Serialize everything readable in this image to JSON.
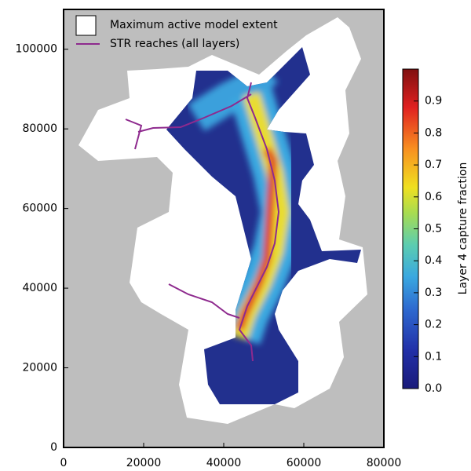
{
  "chart_data": {
    "type": "map",
    "legend": [
      {
        "name": "Maximum active model extent",
        "color": "#ffffff"
      },
      {
        "name": "STR reaches (all layers)",
        "color": "#8e2a8e"
      }
    ],
    "background": "#bebebe",
    "xlim": [
      0,
      80000
    ],
    "xticks": [
      0,
      20000,
      40000,
      60000,
      80000
    ],
    "ylim": [
      0,
      110000
    ],
    "yticks": [
      0,
      20000,
      40000,
      60000,
      80000,
      100000
    ],
    "colorbar": {
      "label": "Layer 4 capture fraction",
      "lim": [
        0,
        1
      ],
      "ticks": [
        {
          "value": 0,
          "label": "0.0"
        },
        0.1,
        0.2,
        0.3,
        0.4,
        0.5,
        0.6,
        0.7,
        0.8,
        0.9
      ]
    }
  }
}
